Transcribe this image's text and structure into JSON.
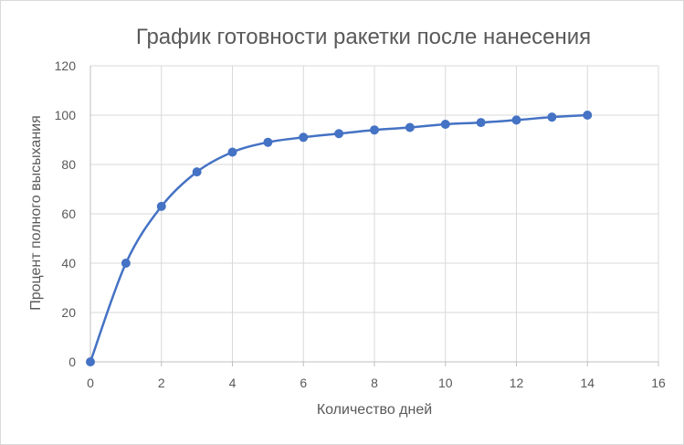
{
  "chart_data": {
    "type": "line",
    "title": "График готовности ракетки после нанесения",
    "xlabel": "Количество дней",
    "ylabel": "Процент полного высыхания",
    "xlim": [
      0,
      16
    ],
    "ylim": [
      0,
      120
    ],
    "xticks": [
      0,
      2,
      4,
      6,
      8,
      10,
      12,
      14,
      16
    ],
    "yticks": [
      0,
      20,
      40,
      60,
      80,
      100,
      120
    ],
    "grid": true,
    "line_color": "#4472c4",
    "series": [
      {
        "x": [
          0,
          1,
          2,
          3,
          4,
          5,
          6,
          7,
          8,
          9,
          10,
          11,
          12,
          13,
          14
        ],
        "values": [
          0,
          40,
          63,
          77,
          85,
          89,
          91,
          92.5,
          94,
          95,
          96.3,
          97,
          98,
          99.2,
          100
        ]
      }
    ]
  }
}
